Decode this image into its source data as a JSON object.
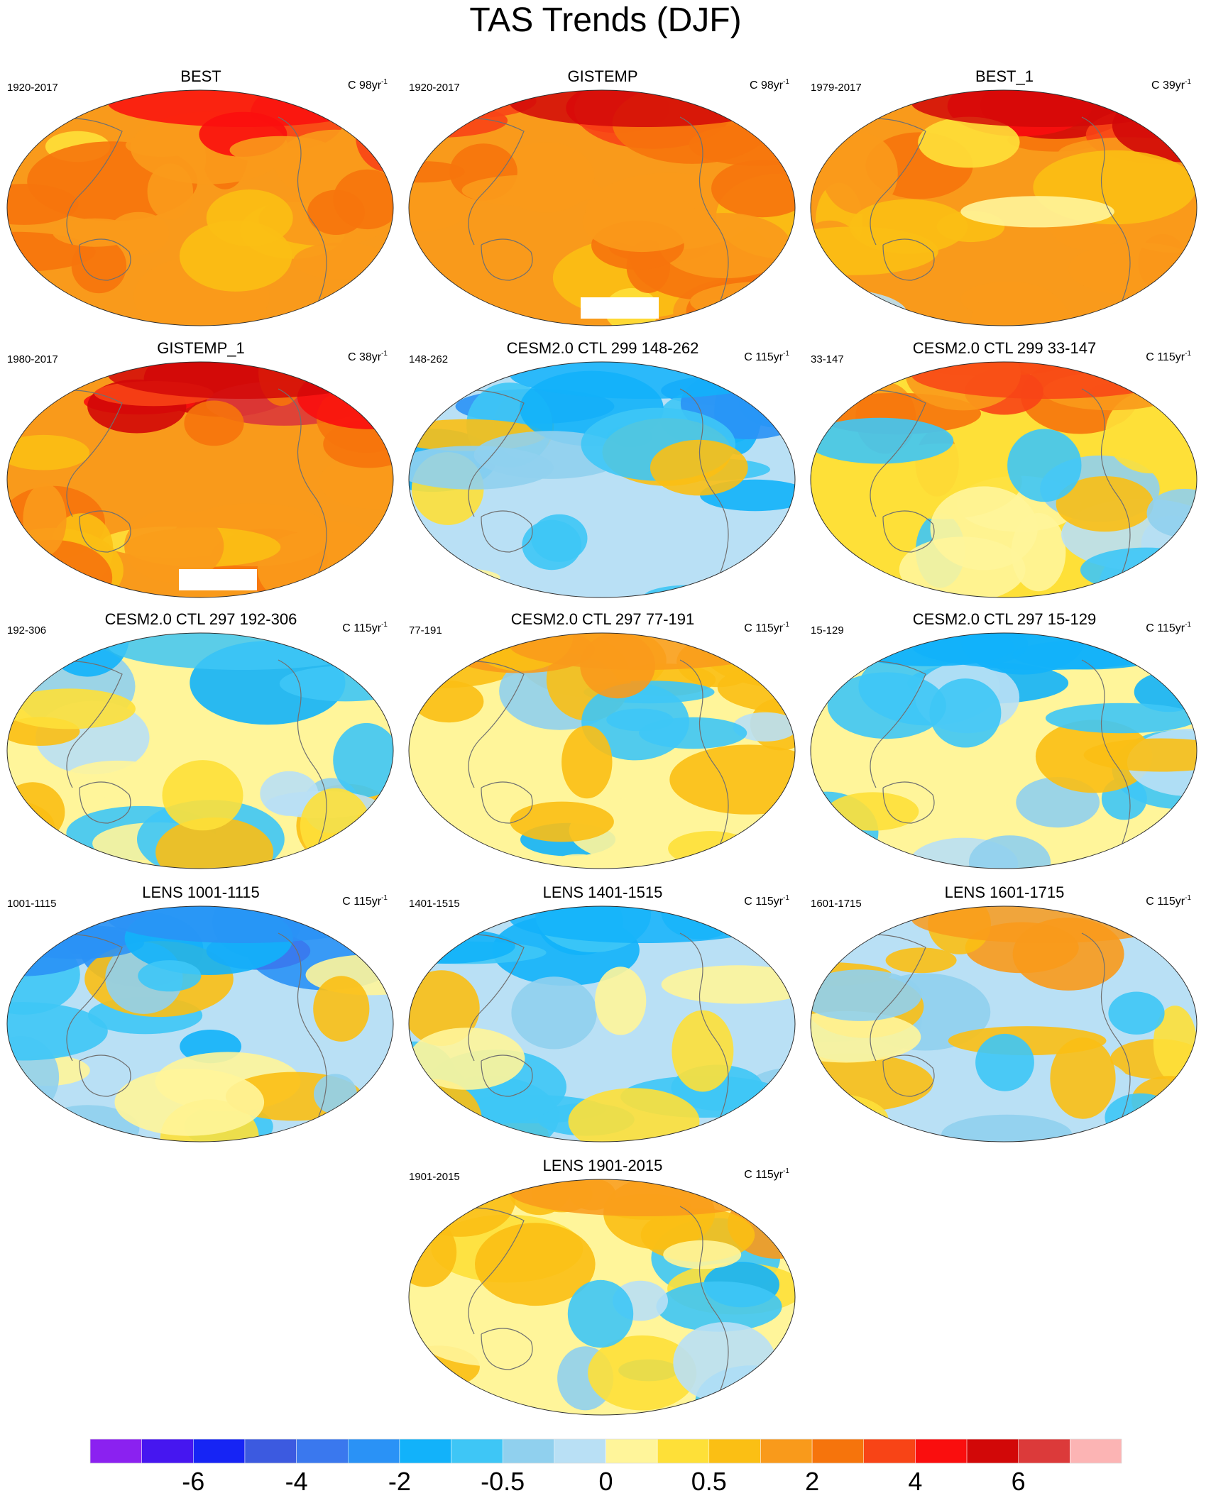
{
  "title": "TAS Trends (DJF)",
  "chart_data": {
    "type": "heatmap",
    "projection": "Robinson (Pacific-centered world map)",
    "panels": [
      {
        "title": "BEST",
        "period": "1920-2017",
        "units": "C",
        "length": "98yr",
        "exponent": "-1",
        "dominant": "warm",
        "warmth": 1.6,
        "polar_north": 4.0,
        "masked": false
      },
      {
        "title": "GISTEMP",
        "period": "1920-2017",
        "units": "C",
        "length": "98yr",
        "exponent": "-1",
        "dominant": "warm",
        "warmth": 1.7,
        "polar_north": 5.0,
        "masked": true
      },
      {
        "title": "BEST_1",
        "period": "1979-2017",
        "units": "C",
        "length": "39yr",
        "exponent": "-1",
        "dominant": "warm",
        "warmth": 1.2,
        "polar_north": 5.5,
        "masked": false
      },
      {
        "title": "GISTEMP_1",
        "period": "1980-2017",
        "units": "C",
        "length": "38yr",
        "exponent": "-1",
        "dominant": "warm",
        "warmth": 1.3,
        "polar_north": 5.5,
        "masked": true
      },
      {
        "title": "CESM2.0 CTL 299 148-262",
        "period": "148-262",
        "units": "C",
        "length": "115yr",
        "exponent": "-1",
        "dominant": "neutral-cool",
        "warmth": -0.2,
        "polar_north": -2.0,
        "masked": false
      },
      {
        "title": "CESM2.0 CTL 299 33-147",
        "period": "33-147",
        "units": "C",
        "length": "115yr",
        "exponent": "-1",
        "dominant": "neutral-warm",
        "warmth": 0.2,
        "polar_north": 3.0,
        "masked": false
      },
      {
        "title": "CESM2.0 CTL 297 192-306",
        "period": "192-306",
        "units": "C",
        "length": "115yr",
        "exponent": "-1",
        "dominant": "neutral",
        "warmth": 0.0,
        "polar_north": -1.0,
        "masked": false
      },
      {
        "title": "CESM2.0 CTL 297 77-191",
        "period": "77-191",
        "units": "C",
        "length": "115yr",
        "exponent": "-1",
        "dominant": "neutral",
        "warmth": 0.05,
        "polar_north": 1.0,
        "masked": false
      },
      {
        "title": "CESM2.0 CTL 297 15-129",
        "period": "15-129",
        "units": "C",
        "length": "115yr",
        "exponent": "-1",
        "dominant": "neutral",
        "warmth": 0.0,
        "polar_north": -1.5,
        "masked": false
      },
      {
        "title": "LENS 1001-1115",
        "period": "1001-1115",
        "units": "C",
        "length": "115yr",
        "exponent": "-1",
        "dominant": "neutral-cool",
        "warmth": -0.15,
        "polar_north": -3.0,
        "masked": false
      },
      {
        "title": "LENS 1401-1515",
        "period": "1401-1515",
        "units": "C",
        "length": "115yr",
        "exponent": "-1",
        "dominant": "neutral-cool",
        "warmth": -0.1,
        "polar_north": -1.5,
        "masked": false
      },
      {
        "title": "LENS 1601-1715",
        "period": "1601-1715",
        "units": "C",
        "length": "115yr",
        "exponent": "-1",
        "dominant": "neutral-cool",
        "warmth": -0.1,
        "polar_north": 1.5,
        "masked": false
      },
      {
        "title": "LENS 1901-2015",
        "period": "1901-2015",
        "units": "C",
        "length": "115yr",
        "exponent": "-1",
        "dominant": "neutral",
        "warmth": 0.05,
        "polar_north": 1.0,
        "masked": false
      }
    ],
    "colorbar": {
      "colors": [
        "#8b21f0",
        "#4616f0",
        "#1624f5",
        "#3c5ae0",
        "#3a78ee",
        "#2a92f6",
        "#12b2fa",
        "#3ec6f6",
        "#90d0ee",
        "#b9e0f5",
        "#fff59a",
        "#fee038",
        "#fbbf14",
        "#f99a1b",
        "#f6740c",
        "#f84416",
        "#fa0e0e",
        "#d20808",
        "#dc3a3a",
        "#fcb4b4"
      ],
      "bounds": [
        -8,
        -7,
        -6,
        -5,
        -4,
        -3,
        -2,
        -1,
        -0.5,
        -0.2,
        0,
        0.2,
        0.5,
        1,
        2,
        3,
        4,
        5,
        6,
        7,
        8
      ],
      "tick_labels": [
        "-6",
        "-4",
        "-2",
        "-0.5",
        "0",
        "0.5",
        "2",
        "4",
        "6"
      ],
      "tick_values": [
        -6,
        -4,
        -2,
        -0.5,
        0,
        0.5,
        2,
        4,
        6
      ]
    }
  }
}
